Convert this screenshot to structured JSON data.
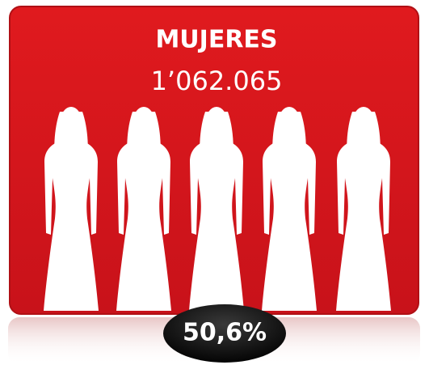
{
  "card": {
    "title": "MUJERES",
    "count": "1’062.065",
    "percentage": "50,6%"
  }
}
